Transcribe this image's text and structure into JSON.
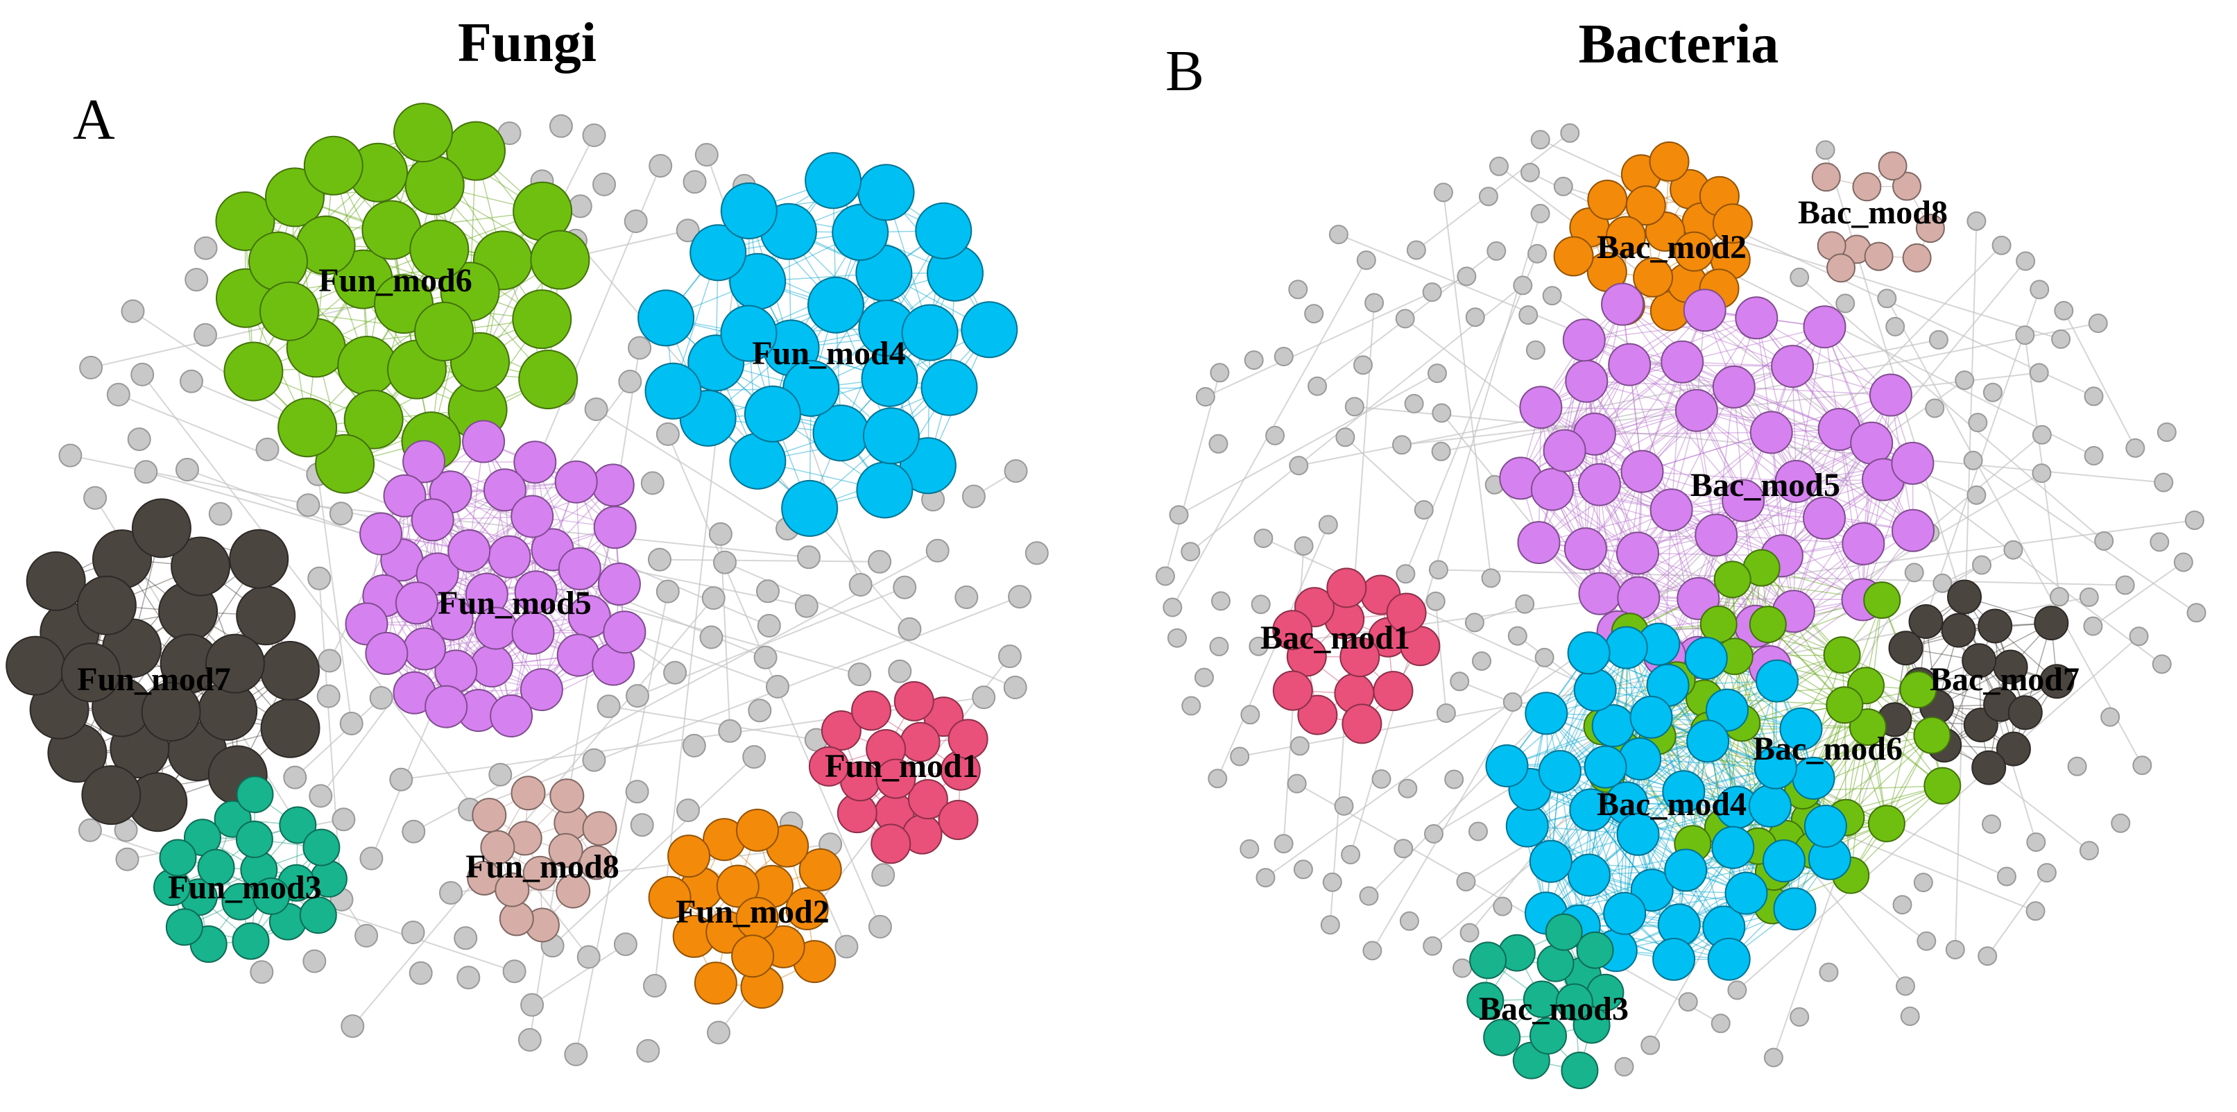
{
  "panels": [
    {
      "letter": "A",
      "title": "Fungi",
      "modules": [
        {
          "name": "Fun_mod6",
          "color": "#6fbf10",
          "nodes": 32
        },
        {
          "name": "Fun_mod4",
          "color": "#00bff3",
          "nodes": 30
        },
        {
          "name": "Fun_mod5",
          "color": "#d681f0",
          "nodes": 40
        },
        {
          "name": "Fun_mod7",
          "color": "#4b4540",
          "nodes": 30
        },
        {
          "name": "Fun_mod1",
          "color": "#e9507a",
          "nodes": 20
        },
        {
          "name": "Fun_mod3",
          "color": "#17b48e",
          "nodes": 20
        },
        {
          "name": "Fun_mod8",
          "color": "#d6aea7",
          "nodes": 15
        },
        {
          "name": "Fun_mod2",
          "color": "#f38a0a",
          "nodes": 18
        }
      ]
    },
    {
      "letter": "B",
      "title": "Bacteria",
      "modules": [
        {
          "name": "Bac_mod2",
          "color": "#f38a0a",
          "nodes": 20
        },
        {
          "name": "Bac_mod8",
          "color": "#d6aea7",
          "nodes": 10
        },
        {
          "name": "Bac_mod5",
          "color": "#d681f0",
          "nodes": 45
        },
        {
          "name": "Bac_mod1",
          "color": "#e9507a",
          "nodes": 15
        },
        {
          "name": "Bac_mod7",
          "color": "#4b4540",
          "nodes": 18
        },
        {
          "name": "Bac_mod6",
          "color": "#6fbf10",
          "nodes": 35
        },
        {
          "name": "Bac_mod4",
          "color": "#00bff3",
          "nodes": 45
        },
        {
          "name": "Bac_mod3",
          "color": "#17b48e",
          "nodes": 15
        }
      ]
    }
  ],
  "colors": {
    "background_node": "#c8c8c8",
    "background_edge": "#c4c4c4"
  }
}
